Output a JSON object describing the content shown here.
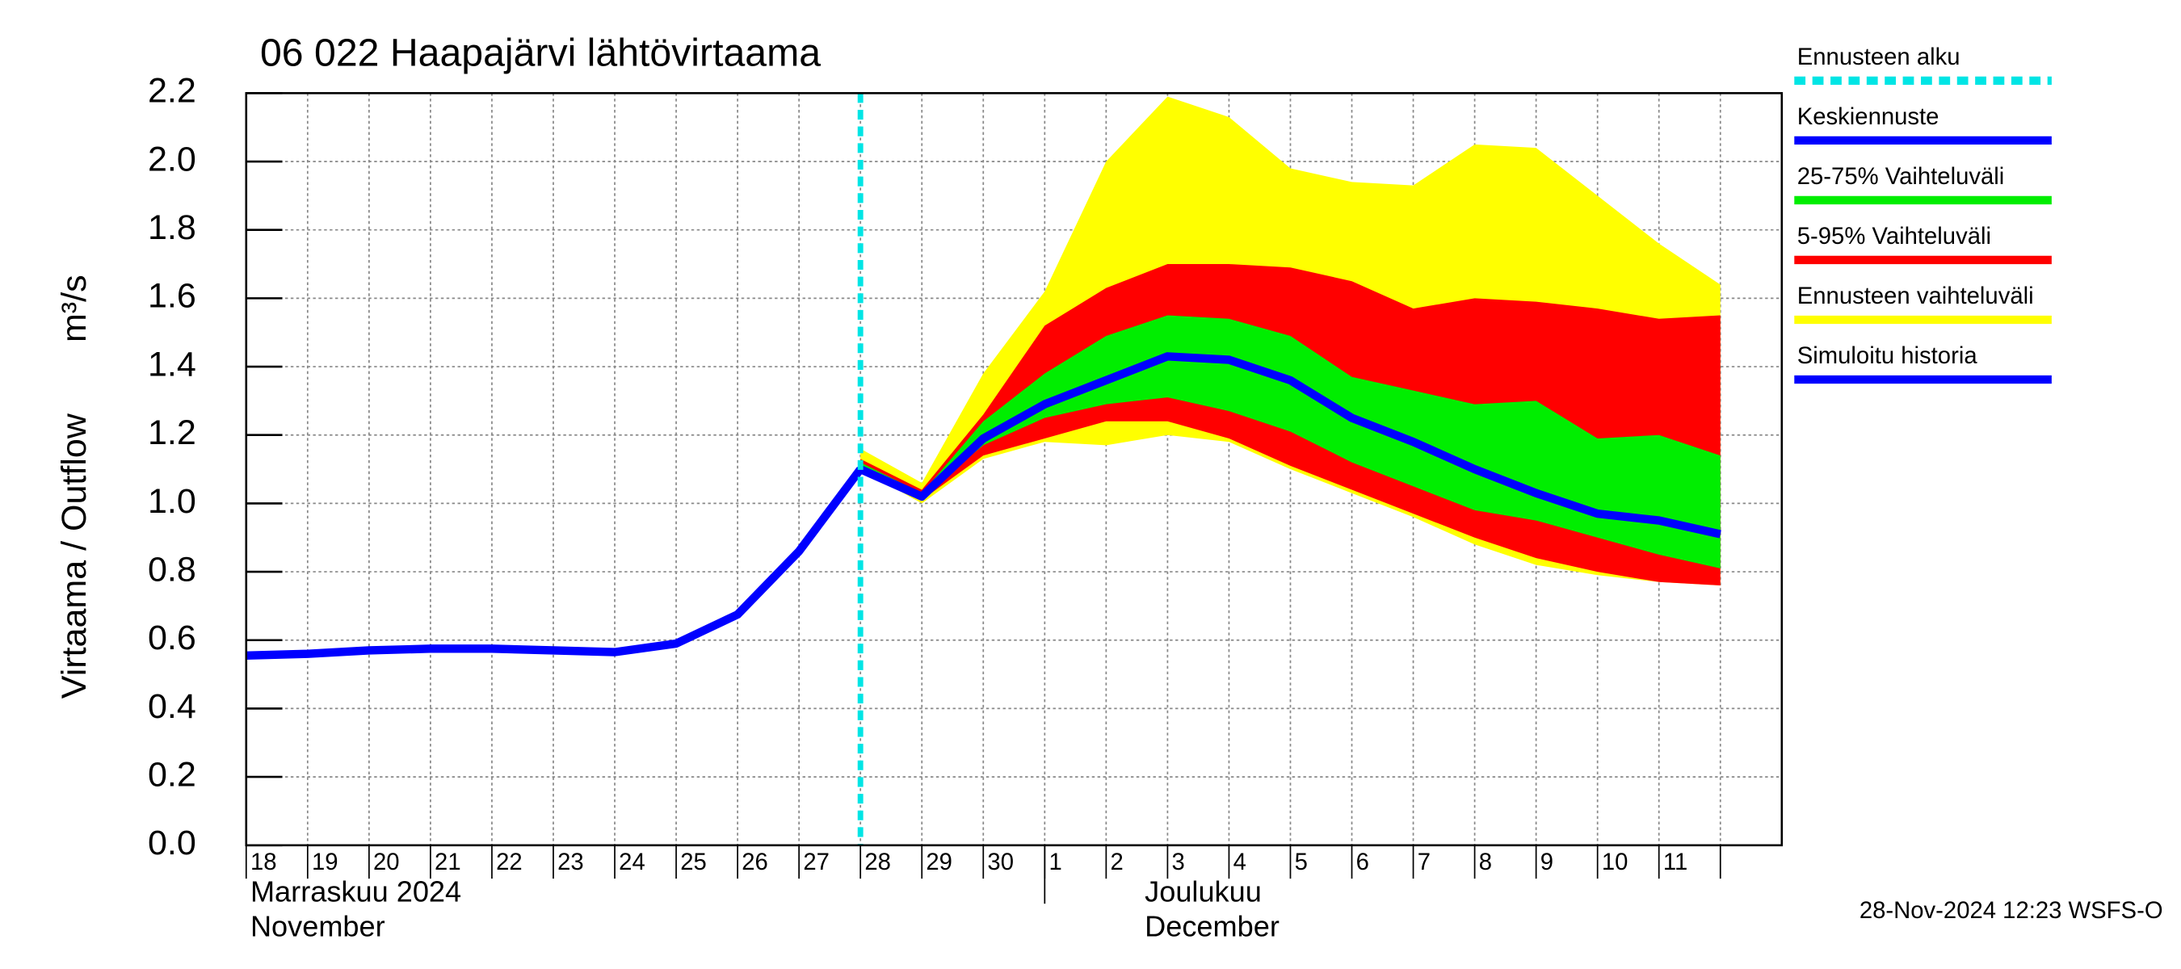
{
  "chart_data": {
    "type": "band-line",
    "title": "06 022 Haapajärvi lähtövirtaama",
    "y_label": "Virtaama / Outflow",
    "y_unit": "m³/s",
    "categories": [
      "18",
      "19",
      "20",
      "21",
      "22",
      "23",
      "24",
      "25",
      "26",
      "27",
      "28",
      "29",
      "30",
      "1",
      "2",
      "3",
      "4",
      "5",
      "6",
      "7",
      "8",
      "9",
      "10",
      "11",
      null
    ],
    "month_labels": [
      "Marraskuu 2024",
      "November",
      "Joulukuu",
      "December"
    ],
    "footer": "28-Nov-2024 12:23 WSFS-O",
    "ylim": [
      0,
      2.2
    ],
    "yticks": [
      {
        "value": 0,
        "label": "0.0"
      },
      0.2,
      0.4,
      0.6,
      0.8,
      {
        "value": 1,
        "label": "1.0"
      },
      1.2,
      1.4,
      1.6,
      1.8,
      {
        "value": 2,
        "label": "2.0"
      },
      2.2
    ],
    "grid": true,
    "series": [
      {
        "name": "Ennusteen alku",
        "color": "#00e5e5",
        "at": 10
      },
      {
        "name": "Keskiennuste",
        "color": "#0000ff",
        "values": [
          null,
          null,
          null,
          null,
          null,
          null,
          null,
          null,
          null,
          null,
          1.1,
          1.02,
          1.19,
          1.29,
          1.36,
          1.43,
          1.42,
          1.36,
          1.25,
          1.18,
          1.1,
          1.03,
          0.97,
          0.95,
          0.91
        ]
      },
      {
        "name": "25-75% Vaihteluväli",
        "color": "#00ee00",
        "upper": [
          null,
          null,
          null,
          null,
          null,
          null,
          null,
          null,
          null,
          null,
          1.12,
          1.03,
          1.24,
          1.38,
          1.49,
          1.55,
          1.54,
          1.49,
          1.37,
          1.33,
          1.29,
          1.3,
          1.19,
          1.2,
          1.14
        ],
        "lower": [
          null,
          null,
          null,
          null,
          null,
          null,
          null,
          null,
          null,
          null,
          1.1,
          1.02,
          1.17,
          1.25,
          1.29,
          1.31,
          1.27,
          1.21,
          1.12,
          1.05,
          0.98,
          0.95,
          0.9,
          0.85,
          0.81
        ]
      },
      {
        "name": "5-95% Vaihteluväli",
        "color": "#ff0000",
        "upper": [
          null,
          null,
          null,
          null,
          null,
          null,
          null,
          null,
          null,
          null,
          1.13,
          1.04,
          1.26,
          1.52,
          1.63,
          1.7,
          1.7,
          1.69,
          1.65,
          1.57,
          1.6,
          1.59,
          1.57,
          1.54,
          1.55
        ],
        "lower": [
          null,
          null,
          null,
          null,
          null,
          null,
          null,
          null,
          null,
          null,
          1.1,
          1.01,
          1.14,
          1.19,
          1.24,
          1.24,
          1.19,
          1.11,
          1.04,
          0.97,
          0.9,
          0.84,
          0.8,
          0.77,
          0.76
        ]
      },
      {
        "name": "Ennusteen vaihteluväli",
        "color": "#ffff00",
        "upper": [
          null,
          null,
          null,
          null,
          null,
          null,
          null,
          null,
          null,
          null,
          1.16,
          1.06,
          1.38,
          1.62,
          2.0,
          2.19,
          2.13,
          1.98,
          1.94,
          1.93,
          2.05,
          2.04,
          1.9,
          1.76,
          1.64
        ],
        "lower": [
          null,
          null,
          null,
          null,
          null,
          null,
          null,
          null,
          null,
          null,
          1.1,
          1.0,
          1.13,
          1.18,
          1.17,
          1.2,
          1.18,
          1.1,
          1.03,
          0.96,
          0.88,
          0.82,
          0.79,
          0.77,
          0.76
        ]
      },
      {
        "name": "Simuloitu historia",
        "color": "#0000ff",
        "values": [
          0.555,
          0.56,
          0.57,
          0.575,
          0.575,
          0.57,
          0.565,
          0.59,
          0.675,
          0.86,
          1.1,
          null,
          null,
          null,
          null,
          null,
          null,
          null,
          null,
          null,
          null,
          null,
          null,
          null,
          null
        ]
      }
    ]
  }
}
